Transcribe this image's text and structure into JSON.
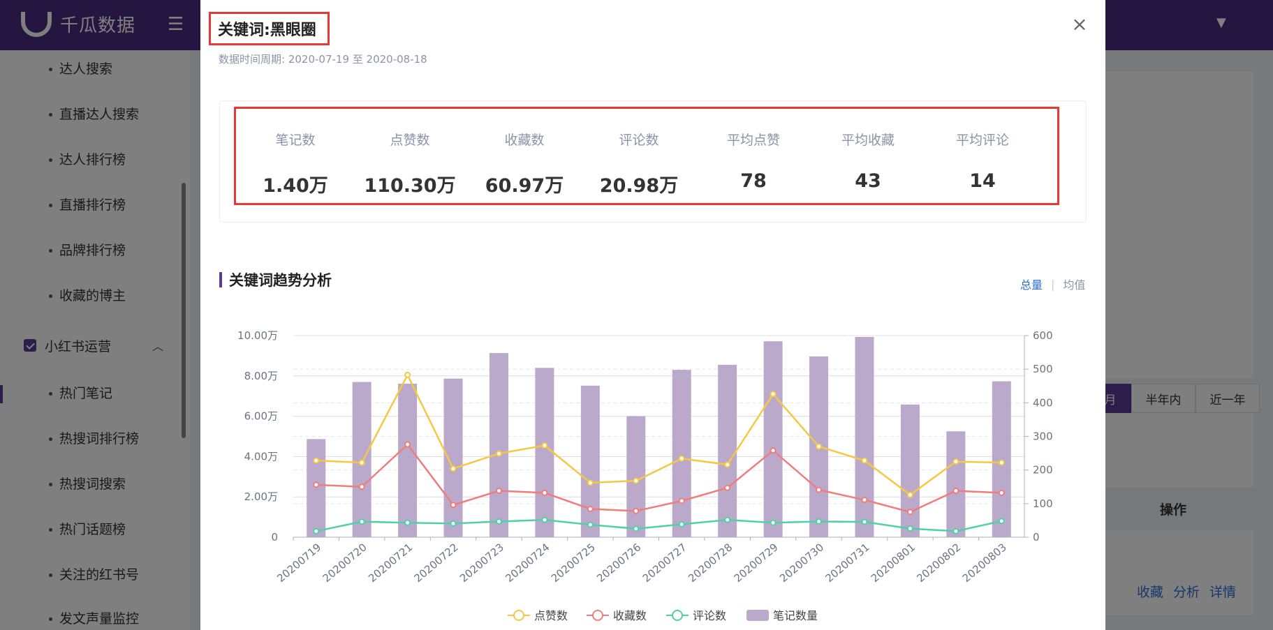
{
  "app": {
    "brand": "千瓜数据"
  },
  "sidebar": {
    "items": [
      "达人搜索",
      "直播达人搜索",
      "达人排行榜",
      "直播排行榜",
      "品牌排行榜",
      "收藏的博主"
    ],
    "group": "小红书运营",
    "group_items": [
      "热门笔记",
      "热搜词排行榜",
      "热搜词搜索",
      "热门话题榜",
      "关注的红书号",
      "发文声量监控"
    ]
  },
  "background": {
    "segments": [
      "月",
      "半年内",
      "近一年"
    ],
    "op_header": "操作",
    "row_links": [
      "收藏",
      "分析",
      "详情"
    ]
  },
  "modal": {
    "title": "关键词:黑眼圈",
    "subtitle": "数据时间周期: 2020-07-19 至 2020-08-18",
    "stats": [
      {
        "label": "笔记数",
        "value": "1.40万"
      },
      {
        "label": "点赞数",
        "value": "110.30万"
      },
      {
        "label": "收藏数",
        "value": "60.97万"
      },
      {
        "label": "评论数",
        "value": "20.98万"
      },
      {
        "label": "平均点赞",
        "value": "78"
      },
      {
        "label": "平均收藏",
        "value": "43"
      },
      {
        "label": "平均评论",
        "value": "14"
      }
    ],
    "section_title": "关键词趋势分析",
    "toggle_total": "总量",
    "toggle_avg": "均值"
  },
  "colors": {
    "brand": "#4b2a82",
    "likes": "#f5c842",
    "favorites": "#f07c7c",
    "comments": "#4fd1a5",
    "notes": "#bba9cc",
    "highlight": "#e53935"
  },
  "chart_data": {
    "type": "bar",
    "categories": [
      "20200719",
      "20200720",
      "20200721",
      "20200722",
      "20200723",
      "20200724",
      "20200725",
      "20200726",
      "20200727",
      "20200728",
      "20200729",
      "20200730",
      "20200731",
      "20200801",
      "20200802",
      "20200803"
    ],
    "y_left": {
      "ticks": [
        "0",
        "2.00万",
        "4.00万",
        "6.00万",
        "8.00万",
        "10.00万"
      ],
      "max": 100000
    },
    "y_right": {
      "ticks": [
        "0",
        "100",
        "200",
        "300",
        "400",
        "500",
        "600"
      ],
      "max": 600
    },
    "series": [
      {
        "name": "笔记数量",
        "type": "bar",
        "axis": "right",
        "values": [
          292,
          462,
          457,
          472,
          548,
          504,
          451,
          360,
          498,
          513,
          583,
          538,
          596,
          395,
          315,
          464
        ]
      },
      {
        "name": "点赞数",
        "type": "line",
        "axis": "left",
        "values": [
          38000,
          37000,
          80500,
          34000,
          41500,
          45500,
          27000,
          28000,
          39000,
          36000,
          71000,
          45000,
          38000,
          21000,
          37500,
          37000
        ]
      },
      {
        "name": "收藏数",
        "type": "line",
        "axis": "left",
        "values": [
          26000,
          25000,
          46000,
          16000,
          23000,
          22000,
          14000,
          13000,
          18000,
          24500,
          43000,
          23500,
          18500,
          12500,
          23000,
          22000
        ]
      },
      {
        "name": "评论数",
        "type": "line",
        "axis": "left",
        "values": [
          3000,
          7700,
          7200,
          6800,
          7800,
          8600,
          6200,
          4200,
          6400,
          8600,
          7200,
          7800,
          7600,
          4300,
          3000,
          8000
        ]
      }
    ],
    "legend": [
      "点赞数",
      "收藏数",
      "评论数",
      "笔记数量"
    ],
    "legend_position": "bottom"
  }
}
